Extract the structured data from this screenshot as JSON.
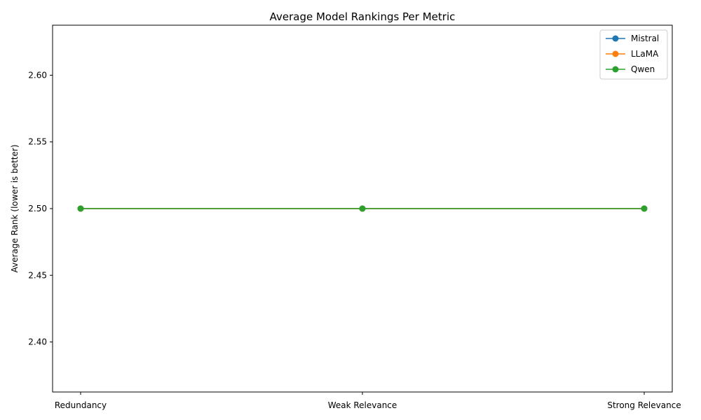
{
  "chart_data": {
    "type": "line",
    "title": "Average Model Rankings Per Metric",
    "xlabel": "",
    "ylabel": "Average Rank (lower is better)",
    "categories": [
      "Redundancy",
      "Weak Relevance",
      "Strong Relevance"
    ],
    "series": [
      {
        "name": "Mistral",
        "values": [
          2.5,
          2.5,
          2.5
        ],
        "color": "#1f77b4"
      },
      {
        "name": "LLaMA",
        "values": [
          2.5,
          2.5,
          2.5
        ],
        "color": "#ff7f0e"
      },
      {
        "name": "Qwen",
        "values": [
          2.5,
          2.5,
          2.5
        ],
        "color": "#2ca02c"
      }
    ],
    "ylim": [
      2.3625,
      2.6375
    ],
    "yticks": [
      "2.40",
      "2.45",
      "2.50",
      "2.55",
      "2.60"
    ],
    "grid": false,
    "legend_position": "top-right"
  }
}
